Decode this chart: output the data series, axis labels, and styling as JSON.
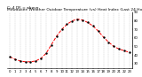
{
  "title": "Milwaukee Weather Outdoor Temperature (vs) Heat Index (Last 24 Hours)",
  "subtitle": "C: 4 DF = above",
  "x_hours": [
    0,
    1,
    2,
    3,
    4,
    5,
    6,
    7,
    8,
    9,
    10,
    11,
    12,
    13,
    14,
    15,
    16,
    17,
    18,
    19,
    20,
    21,
    22,
    23
  ],
  "temp_values": [
    38,
    35,
    33,
    32,
    32,
    33,
    36,
    42,
    52,
    62,
    70,
    76,
    80,
    82,
    81,
    78,
    74,
    68,
    61,
    55,
    50,
    47,
    45,
    43
  ],
  "line_color": "#ff0000",
  "marker_color": "#000000",
  "bg_color": "#ffffff",
  "grid_color": "#999999",
  "ylim_min": 25,
  "ylim_max": 90,
  "yticks": [
    30,
    40,
    50,
    60,
    70,
    80,
    90
  ],
  "title_fontsize": 3.2,
  "tick_fontsize": 2.8,
  "line_width": 0.7,
  "marker_size": 1.5
}
